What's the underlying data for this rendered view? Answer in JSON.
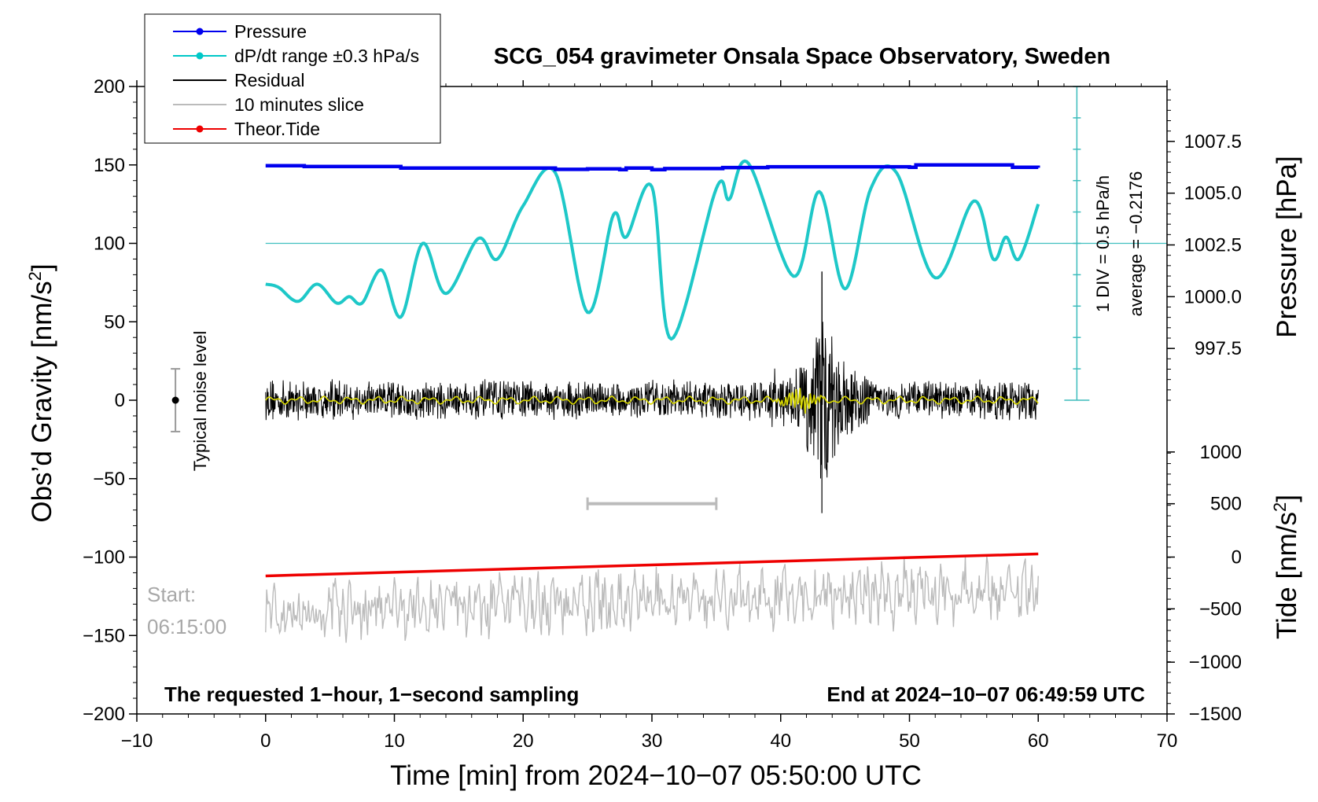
{
  "chart_data": {
    "type": "line",
    "title": "SCG_054 gravimeter Onsala Space Observatory, Sweden",
    "xlabel": "Time [min] from 2024−10−07 05:50:00 UTC",
    "ylabel_left": "Obs’d Gravity [nm/s²]",
    "ylabel_left_base": "Obs’d Gravity [nm/s",
    "ylabel_left_sup": "2",
    "ylabel_left_end": "]",
    "ylabel_right_top": "Pressure [hPa]",
    "ylabel_right_bottom": "Tide [nm/s²]",
    "ylabel_right_bottom_base": "Tide [nm/s",
    "ylabel_right_bottom_sup": "2",
    "ylabel_right_bottom_end": "]",
    "xlim": [
      -10,
      70
    ],
    "ylim": [
      -200,
      200
    ],
    "x_ticks": [
      -10,
      0,
      10,
      20,
      30,
      40,
      50,
      60,
      70
    ],
    "x_tick_labels": [
      "−10",
      "0",
      "10",
      "20",
      "30",
      "40",
      "50",
      "60",
      "70"
    ],
    "y_ticks": [
      200,
      150,
      100,
      50,
      0,
      -50,
      -100,
      -150,
      -200
    ],
    "y_tick_labels": [
      "200",
      "150",
      "100",
      "50",
      "0",
      "−50",
      "−100",
      "−150",
      "−200"
    ],
    "pressure_axis": {
      "ticks": [
        1007.5,
        1005.0,
        1002.5,
        1000.0,
        997.5
      ],
      "tick_labels": [
        "1007.5",
        "1005.0",
        "1002.5",
        "1000.0",
        "997.5"
      ],
      "gravity_at": [
        165,
        132,
        99,
        66,
        33
      ]
    },
    "tide_axis": {
      "ticks": [
        1000,
        500,
        0,
        -500,
        -1000,
        -1500
      ],
      "tick_labels": [
        "1000",
        "500",
        "0",
        "−500",
        "−1000",
        "−1500"
      ],
      "gravity_at": [
        -33,
        -66,
        -100,
        -133,
        -167,
        -200
      ]
    },
    "legend": {
      "placement": "top-left",
      "entries": [
        {
          "label": "Pressure",
          "color": "#0000ee",
          "marker": true
        },
        {
          "label": "dP/dt range ±0.3 hPa/s",
          "color": "#00c8c8",
          "marker": true
        },
        {
          "label": "Residual",
          "color": "#000000",
          "marker": false
        },
        {
          "label": "10 minutes slice",
          "color": "#bbbbbb",
          "marker": false
        },
        {
          "label": "Theor.Tide",
          "color": "#ee0000",
          "marker": true
        }
      ]
    },
    "colors": {
      "pressure": "#0000ee",
      "dpdt": "#1ec8c8",
      "residual": "#000000",
      "residual_smooth": "#d8d800",
      "slice": "#bbbbbb",
      "tide": "#ee0000",
      "scale_bar": "#3cbcbc"
    },
    "series": [
      {
        "name": "Pressure",
        "x": [
          0,
          3,
          10.5,
          22.5,
          25,
          27.5,
          28,
          30,
          31,
          35.5,
          39,
          50,
          50.5,
          58,
          60
        ],
        "values": [
          149.5,
          149,
          148,
          147.2,
          147.5,
          147,
          148,
          147,
          147.7,
          148.3,
          148.8,
          148.5,
          150,
          148.5,
          148.2
        ]
      },
      {
        "name": "dP/dt range ±0.3 hPa/s",
        "x": [
          0,
          1,
          2.5,
          4,
          5.5,
          6.5,
          7.5,
          9,
          10.5,
          12.2,
          14,
          16.5,
          18,
          20,
          22.5,
          25,
          27,
          28,
          30,
          31.5,
          35,
          36,
          37.5,
          41,
          43,
          45,
          47,
          49,
          52,
          55,
          56.5,
          57.5,
          58.5,
          60
        ],
        "values": [
          74,
          72,
          63,
          74,
          62,
          66,
          62,
          83,
          53,
          100,
          68,
          103,
          90,
          124,
          145,
          56,
          118,
          104,
          136,
          39,
          135,
          128,
          151,
          79,
          133,
          71,
          135,
          145,
          78,
          127,
          90,
          104,
          90,
          125
        ]
      },
      {
        "name": "Residual",
        "x": [
          0,
          60
        ],
        "values": [
          0,
          0
        ],
        "noise_amplitude": 14,
        "burst_min": 43.2,
        "burst_max": 82,
        "burst_min_value": -72
      },
      {
        "name": "10 minutes slice",
        "x": [
          0,
          60
        ],
        "values": [
          -135,
          -120
        ]
      },
      {
        "name": "Theor.Tide",
        "x": [
          0,
          60
        ],
        "values": [
          -112,
          -98
        ]
      }
    ],
    "reference_line_value": 100,
    "dpdt_scale": {
      "x": 63,
      "y_min": 0,
      "y_max": 200,
      "label": "1 DIV = 0.5 hPa/h",
      "average_label": "average = −0.2176"
    },
    "noise_indicator": {
      "x": -7,
      "center": 0,
      "range": [
        -20,
        20
      ],
      "label": "Typical noise level"
    },
    "slice_bar": {
      "x_range": [
        25,
        35
      ],
      "y": -66
    },
    "annotations": {
      "start_label": "Start:",
      "start_time": "06:15:00",
      "bottom_left": "The requested 1−hour, 1−second sampling",
      "bottom_right": "End at 2024−10−07 06:49:59 UTC"
    }
  }
}
